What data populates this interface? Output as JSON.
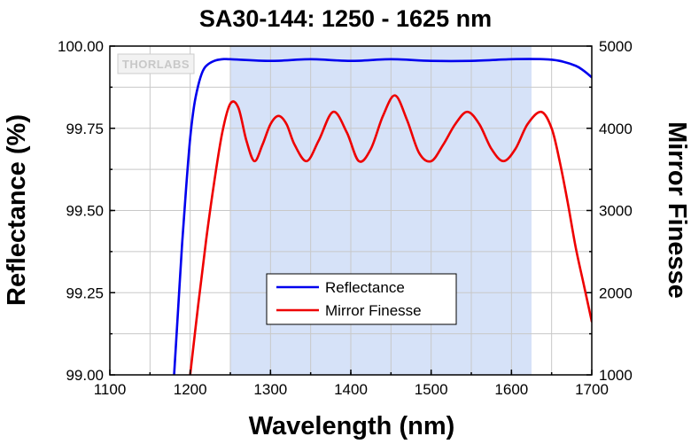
{
  "chart_data": {
    "type": "line",
    "title": "SA30-144: 1250 - 1625 nm",
    "xlabel": "Wavelength (nm)",
    "ylabel": "Reflectance (%)",
    "y2label": "Mirror Finesse",
    "xlim": [
      1100,
      1700
    ],
    "ylim": [
      99.0,
      100.0
    ],
    "y2lim": [
      1000,
      5000
    ],
    "xticks": [
      1100,
      1200,
      1300,
      1400,
      1500,
      1600,
      1700
    ],
    "yticks": [
      "99.00",
      "99.25",
      "99.50",
      "99.75",
      "100.00"
    ],
    "y2ticks": [
      1000,
      2000,
      3000,
      4000,
      5000
    ],
    "grid": true,
    "shaded_band": {
      "x_start": 1250,
      "x_end": 1625,
      "color": "#d6e2f8"
    },
    "legend_position": "bottom-center",
    "logo": "THORLABS",
    "series": [
      {
        "name": "Reflectance",
        "axis": "left",
        "color": "#0000ee",
        "x": [
          1180,
          1185,
          1190,
          1195,
          1200,
          1205,
          1210,
          1215,
          1220,
          1230,
          1240,
          1250,
          1300,
          1350,
          1400,
          1450,
          1500,
          1550,
          1600,
          1640,
          1660,
          1680,
          1690,
          1700
        ],
        "values": [
          99.0,
          99.2,
          99.4,
          99.57,
          99.72,
          99.82,
          99.88,
          99.92,
          99.94,
          99.955,
          99.96,
          99.96,
          99.955,
          99.96,
          99.955,
          99.96,
          99.955,
          99.955,
          99.96,
          99.96,
          99.955,
          99.94,
          99.925,
          99.905
        ]
      },
      {
        "name": "Mirror Finesse",
        "axis": "right",
        "color": "#ee0000",
        "x": [
          1200,
          1210,
          1220,
          1230,
          1240,
          1250,
          1260,
          1270,
          1280,
          1290,
          1300,
          1310,
          1320,
          1330,
          1345,
          1360,
          1378,
          1395,
          1410,
          1425,
          1440,
          1455,
          1470,
          1485,
          1500,
          1515,
          1530,
          1545,
          1560,
          1575,
          1590,
          1605,
          1620,
          1637,
          1650,
          1660,
          1670,
          1680,
          1690,
          1700
        ],
        "values": [
          1000,
          1850,
          2650,
          3350,
          3950,
          4300,
          4250,
          3850,
          3600,
          3800,
          4050,
          4150,
          4050,
          3800,
          3600,
          3850,
          4200,
          3950,
          3600,
          3750,
          4150,
          4400,
          4100,
          3700,
          3600,
          3800,
          4050,
          4200,
          4050,
          3750,
          3600,
          3750,
          4050,
          4200,
          4000,
          3600,
          3100,
          2550,
          2100,
          1650
        ]
      }
    ]
  }
}
